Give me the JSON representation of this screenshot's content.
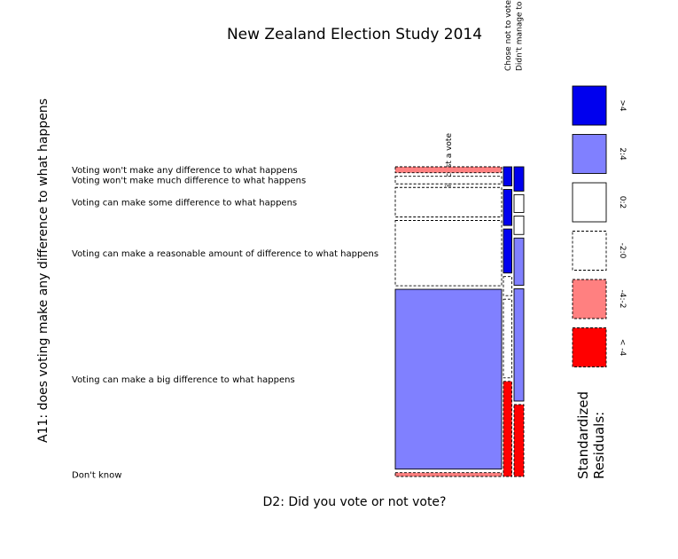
{
  "chart_data": {
    "type": "mosaic",
    "title": "New Zealand Election Study 2014",
    "xlabel": "D2: Did you vote or not vote?",
    "ylabel": "A11: does voting make any difference to what happens",
    "columns": [
      "Did cast a vote",
      "Chose not to vote",
      "Didn't manage to vote"
    ],
    "rows": [
      "Voting won't make any difference to what happens",
      "Voting won't make much difference to what happens",
      "Voting can make some difference to what happens",
      "Voting can make a reasonable amount of difference to what happens",
      "Voting can make a big difference to what happens",
      "Don't know"
    ],
    "column_proportions": [
      0.88,
      0.07,
      0.05
    ],
    "cells": [
      {
        "row": 0,
        "col": 0,
        "share": 0.017,
        "residual_class": "-4:-2"
      },
      {
        "row": 1,
        "col": 0,
        "share": 0.022,
        "residual_class": "-2:0"
      },
      {
        "row": 2,
        "col": 0,
        "share": 0.085,
        "residual_class": "-2:0"
      },
      {
        "row": 3,
        "col": 0,
        "share": 0.188,
        "residual_class": "-2:0"
      },
      {
        "row": 4,
        "col": 0,
        "share": 0.518,
        "residual_class": "2:4"
      },
      {
        "row": 5,
        "col": 0,
        "share": 0.011,
        "residual_class": "-4:-2"
      },
      {
        "row": 0,
        "col": 1,
        "share": 0.043,
        "residual_class": ">4"
      },
      {
        "row": 1,
        "col": 1,
        "share": 0.081,
        "residual_class": ">4"
      },
      {
        "row": 2,
        "col": 1,
        "share": 0.099,
        "residual_class": ">4"
      },
      {
        "row": 3,
        "col": 1,
        "share": 0.043,
        "residual_class": "-2:0"
      },
      {
        "row": 4,
        "col": 1,
        "share": 0.177,
        "residual_class": "-2:0"
      },
      {
        "row": 5,
        "col": 1,
        "share": 0.214,
        "residual_class": "< -4"
      },
      {
        "row": 0,
        "col": 2,
        "share": 0.071,
        "residual_class": ">4"
      },
      {
        "row": 1,
        "col": 2,
        "share": 0.052,
        "residual_class": "0:2"
      },
      {
        "row": 2,
        "col": 2,
        "share": 0.054,
        "residual_class": "0:2"
      },
      {
        "row": 3,
        "col": 2,
        "share": 0.138,
        "residual_class": "2:4"
      },
      {
        "row": 4,
        "col": 2,
        "share": 0.328,
        "residual_class": "2:4"
      },
      {
        "row": 5,
        "col": 2,
        "share": 0.21,
        "residual_class": "< -4"
      }
    ],
    "legend": {
      "title": "Standardized Residuals:",
      "entries": [
        {
          "label": ">4",
          "color": "#0000ee",
          "dashed": false
        },
        {
          "label": "2:4",
          "color": "#8080ff",
          "dashed": false
        },
        {
          "label": "0:2",
          "color": "#ffffff",
          "dashed": false
        },
        {
          "label": "-2:0",
          "color": "#ffffff",
          "dashed": true
        },
        {
          "label": "-4:-2",
          "color": "#ff8080",
          "dashed": true
        },
        {
          "label": "< -4",
          "color": "#ff0000",
          "dashed": true
        }
      ]
    },
    "legend_position": "right"
  }
}
